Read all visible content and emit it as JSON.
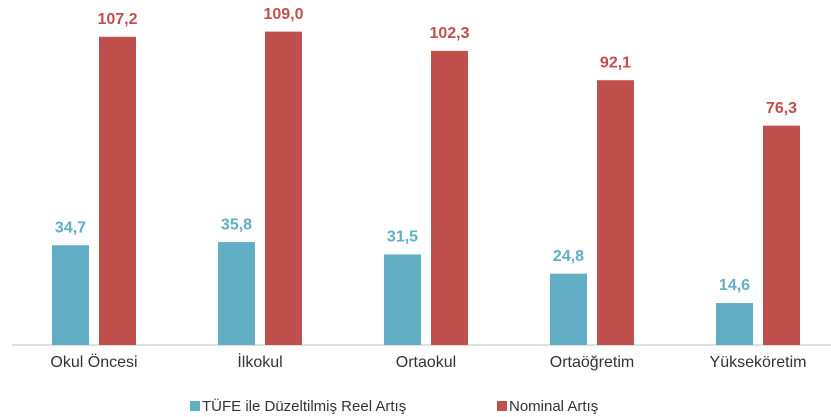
{
  "chart_data": {
    "type": "bar",
    "categories": [
      "Okul Öncesi",
      "İlkokul",
      "Ortaokul",
      "Ortaöğretim",
      "Yükseköretim"
    ],
    "series": [
      {
        "name": "TÜFE ile Düzeltilmiş Reel Artış",
        "color": "#62aec5",
        "values": [
          34.7,
          35.8,
          31.5,
          24.8,
          14.6
        ],
        "value_labels": [
          "34,7",
          "35,8",
          "31,5",
          "24,8",
          "14,6"
        ]
      },
      {
        "name": "Nominal Artış",
        "color": "#c0504d",
        "values": [
          107.2,
          109.0,
          102.3,
          92.1,
          76.3
        ],
        "value_labels": [
          "107,2",
          "109,0",
          "102,3",
          "92,1",
          "76,3"
        ]
      }
    ],
    "ylim": [
      0,
      120
    ]
  }
}
